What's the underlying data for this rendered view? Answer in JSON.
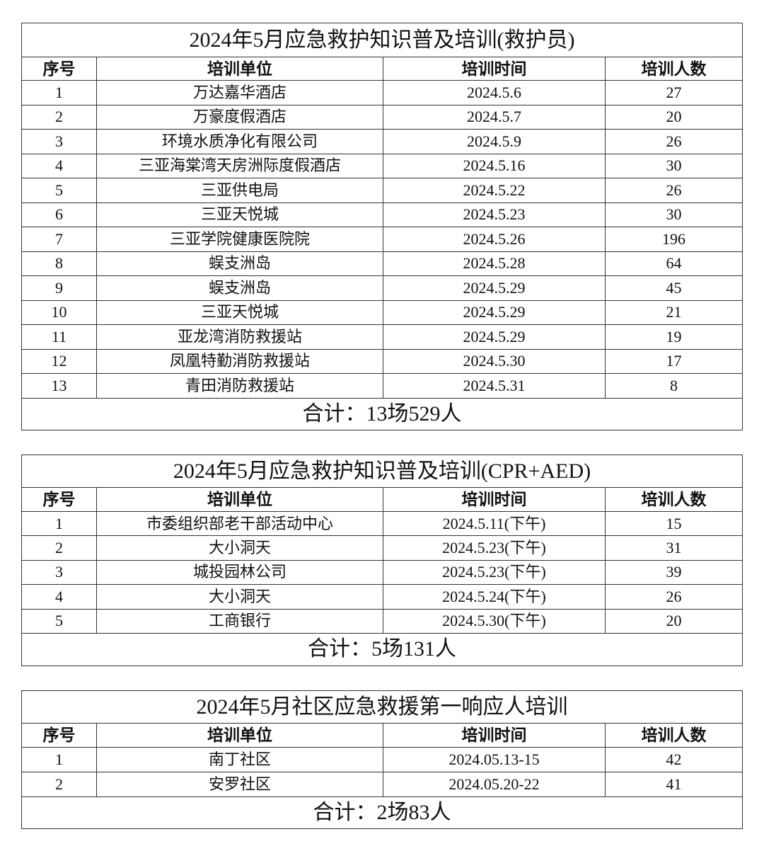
{
  "headers": [
    "序号",
    "培训单位",
    "培训时间",
    "培训人数"
  ],
  "tables": [
    {
      "title": "2024年5月应急救护知识普及培训(救护员)",
      "rows": [
        [
          "1",
          "万达嘉华酒店",
          "2024.5.6",
          "27"
        ],
        [
          "2",
          "万豪度假酒店",
          "2024.5.7",
          "20"
        ],
        [
          "3",
          "环境水质净化有限公司",
          "2024.5.9",
          "26"
        ],
        [
          "4",
          "三亚海棠湾天房洲际度假酒店",
          "2024.5.16",
          "30"
        ],
        [
          "5",
          "三亚供电局",
          "2024.5.22",
          "26"
        ],
        [
          "6",
          "三亚天悦城",
          "2024.5.23",
          "30"
        ],
        [
          "7",
          "三亚学院健康医院院",
          "2024.5.26",
          "196"
        ],
        [
          "8",
          "蜈支洲岛",
          "2024.5.28",
          "64"
        ],
        [
          "9",
          "蜈支洲岛",
          "2024.5.29",
          "45"
        ],
        [
          "10",
          "三亚天悦城",
          "2024.5.29",
          "21"
        ],
        [
          "11",
          "亚龙湾消防救援站",
          "2024.5.29",
          "19"
        ],
        [
          "12",
          "凤凰特勤消防救援站",
          "2024.5.30",
          "17"
        ],
        [
          "13",
          "青田消防救援站",
          "2024.5.31",
          "8"
        ]
      ],
      "total": "合计：13场529人"
    },
    {
      "title": "2024年5月应急救护知识普及培训(CPR+AED)",
      "rows": [
        [
          "1",
          "市委组织部老干部活动中心",
          "2024.5.11(下午)",
          "15"
        ],
        [
          "2",
          "大小洞天",
          "2024.5.23(下午)",
          "31"
        ],
        [
          "3",
          "城投园林公司",
          "2024.5.23(下午)",
          "39"
        ],
        [
          "4",
          "大小洞天",
          "2024.5.24(下午)",
          "26"
        ],
        [
          "5",
          "工商银行",
          "2024.5.30(下午)",
          "20"
        ]
      ],
      "total": "合计：5场131人"
    },
    {
      "title": "2024年5月社区应急救援第一响应人培训",
      "rows": [
        [
          "1",
          "南丁社区",
          "2024.05.13-15",
          "42"
        ],
        [
          "2",
          "安罗社区",
          "2024.05.20-22",
          "41"
        ]
      ],
      "total": "合计：2场83人"
    }
  ]
}
